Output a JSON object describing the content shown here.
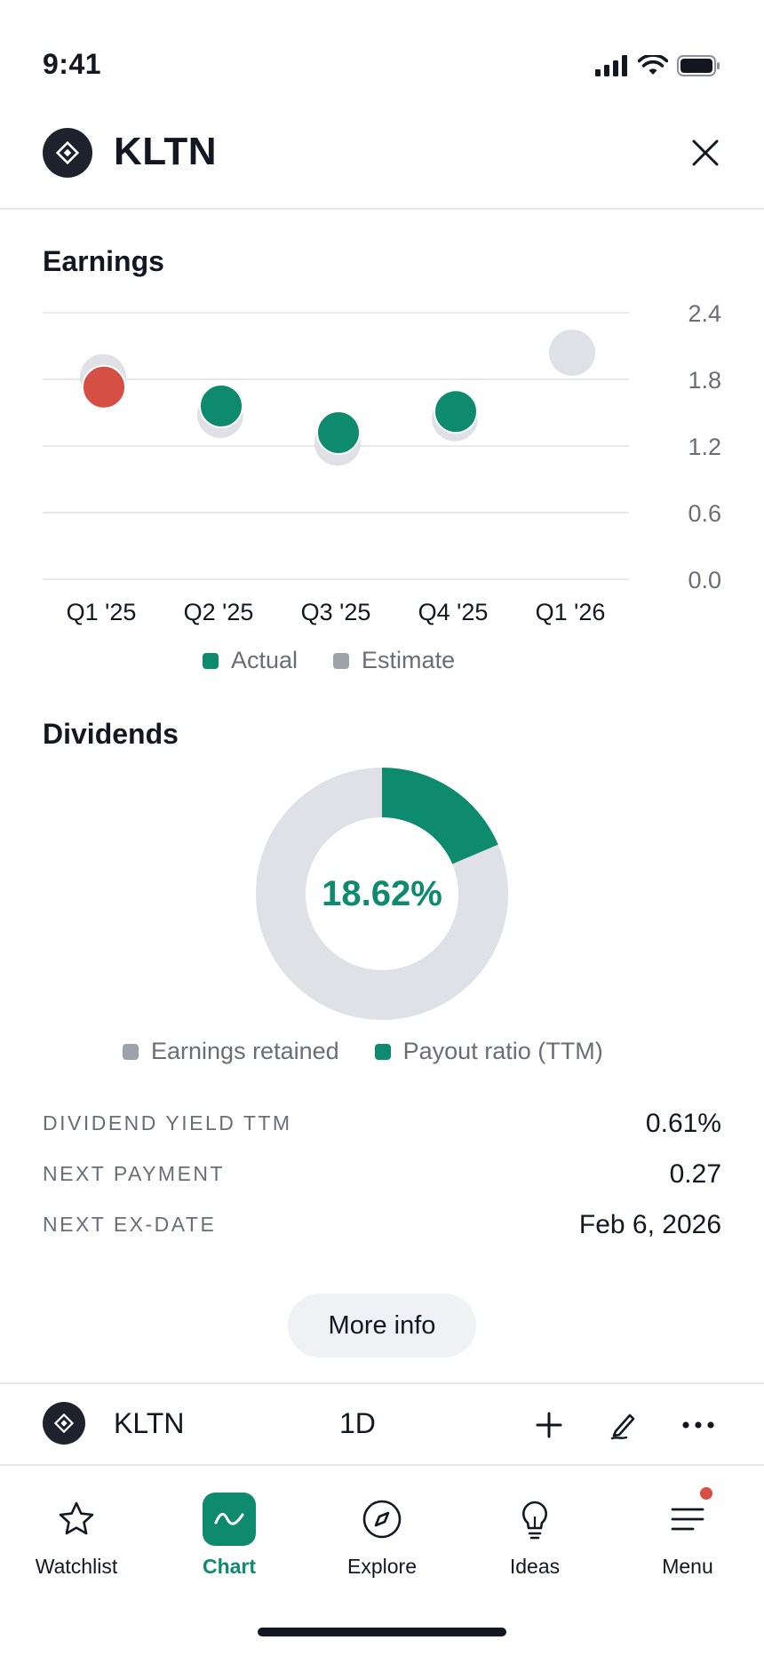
{
  "status": {
    "time": "9:41"
  },
  "header": {
    "symbol": "KLTN"
  },
  "earnings": {
    "title": "Earnings",
    "legend": [
      {
        "label": "Actual",
        "color": "#0e8a6e"
      },
      {
        "label": "Estimate",
        "color": "#9ea3ab"
      }
    ]
  },
  "chart_data": {
    "type": "scatter",
    "categories": [
      "Q1 '25",
      "Q2 '25",
      "Q3 '25",
      "Q4 '25",
      "Q1 '26"
    ],
    "series": [
      {
        "name": "Actual",
        "values": [
          1.73,
          1.56,
          1.32,
          1.51,
          null
        ],
        "colors": [
          "#d64f45",
          "#0e8a6e",
          "#0e8a6e",
          "#0e8a6e",
          null
        ]
      },
      {
        "name": "Estimate",
        "values": [
          1.82,
          1.48,
          1.23,
          1.45,
          2.04
        ],
        "color": "#dfe1e6"
      }
    ],
    "yticks": [
      "2.4",
      "1.8",
      "1.2",
      "0.6",
      "0.0"
    ],
    "ylim": [
      0,
      2.4
    ],
    "grid": true,
    "legend": "bottom"
  },
  "dividends": {
    "title": "Dividends",
    "payout_percent": 18.62,
    "center_label": "18.62%",
    "legend": [
      {
        "label": "Earnings retained",
        "color": "#9ea3ab"
      },
      {
        "label": "Payout ratio (TTM)",
        "color": "#0e8a6e"
      }
    ],
    "stats": [
      {
        "label": "DIVIDEND YIELD TTM",
        "value": "0.61%"
      },
      {
        "label": "NEXT PAYMENT",
        "value": "0.27"
      },
      {
        "label": "NEXT EX-DATE",
        "value": "Feb 6, 2026"
      }
    ],
    "more_label": "More info"
  },
  "toolbar": {
    "symbol": "KLTN",
    "interval": "1D"
  },
  "tabs": [
    {
      "label": "Watchlist",
      "icon": "star-icon"
    },
    {
      "label": "Chart",
      "icon": "chart-icon",
      "active": true
    },
    {
      "label": "Explore",
      "icon": "compass-icon"
    },
    {
      "label": "Ideas",
      "icon": "lightbulb-icon"
    },
    {
      "label": "Menu",
      "icon": "menu-icon",
      "badge": true
    }
  ],
  "colors": {
    "accent": "#0e8a6e",
    "negative": "#d64f45",
    "neutral": "#dfe1e6"
  }
}
